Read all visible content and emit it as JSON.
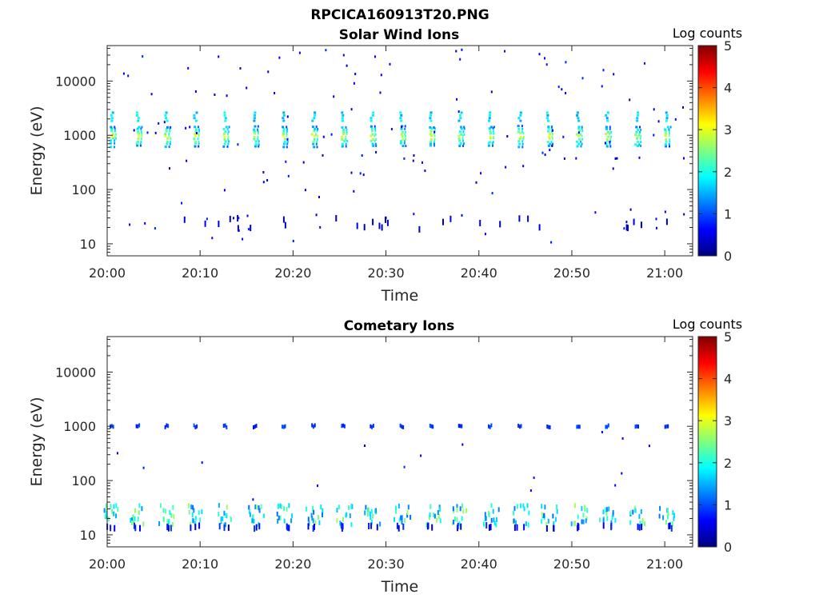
{
  "figure": {
    "title": "RPCICA160913T20.PNG"
  },
  "colorbar_stops": [
    "#00007f",
    "#0000ff",
    "#007fff",
    "#00ffff",
    "#7fff7f",
    "#ffff00",
    "#ff7f00",
    "#ff0000",
    "#7f0000"
  ],
  "chart_data": [
    {
      "type": "heatmap",
      "title": "Solar Wind Ions",
      "xlabel": "Time",
      "ylabel": "Energy (eV)",
      "xlim": [
        "20:00",
        "21:03"
      ],
      "ylim": [
        6,
        45000
      ],
      "yscale": "log",
      "x_ticks": [
        "20:00",
        "20:10",
        "20:20",
        "20:30",
        "20:40",
        "20:50",
        "21:00"
      ],
      "y_ticks": [
        "10",
        "100",
        "1000",
        "10000"
      ],
      "colorbar": {
        "label": "Log counts",
        "range": [
          0,
          5
        ],
        "ticks": [
          "0",
          "1",
          "2",
          "3",
          "4",
          "5"
        ]
      },
      "scan_times_min": [
        0.5,
        3.3,
        6.4,
        9.5,
        12.7,
        15.9,
        19.0,
        22.2,
        25.4,
        28.5,
        31.7,
        34.9,
        38.0,
        41.2,
        44.4,
        47.5,
        50.7,
        53.8,
        57.0,
        60.2
      ],
      "peak_energy_eV": 950,
      "peak_log_counts": 2.9,
      "secondary_energy_eV": 2200,
      "secondary_log_counts": 1.7
    },
    {
      "type": "heatmap",
      "title": "Cometary Ions",
      "xlabel": "Time",
      "ylabel": "Energy (eV)",
      "xlim": [
        "20:00",
        "21:03"
      ],
      "ylim": [
        6,
        45000
      ],
      "yscale": "log",
      "x_ticks": [
        "20:00",
        "20:10",
        "20:20",
        "20:30",
        "20:40",
        "20:50",
        "21:00"
      ],
      "y_ticks": [
        "10",
        "100",
        "1000",
        "10000"
      ],
      "colorbar": {
        "label": "Log counts",
        "range": [
          0,
          5
        ],
        "ticks": [
          "0",
          "1",
          "2",
          "3",
          "4",
          "5"
        ]
      },
      "scan_times_min": [
        0.5,
        3.3,
        6.4,
        9.5,
        12.7,
        15.9,
        19.0,
        22.2,
        25.4,
        28.5,
        31.7,
        34.9,
        38.0,
        41.2,
        44.4,
        47.5,
        50.7,
        53.8,
        57.0,
        60.2
      ],
      "low_energy_band_eV": [
        15,
        35
      ],
      "low_band_log_counts": 1.9,
      "line_energy_eV": 1000,
      "line_log_counts": 0.9
    }
  ]
}
